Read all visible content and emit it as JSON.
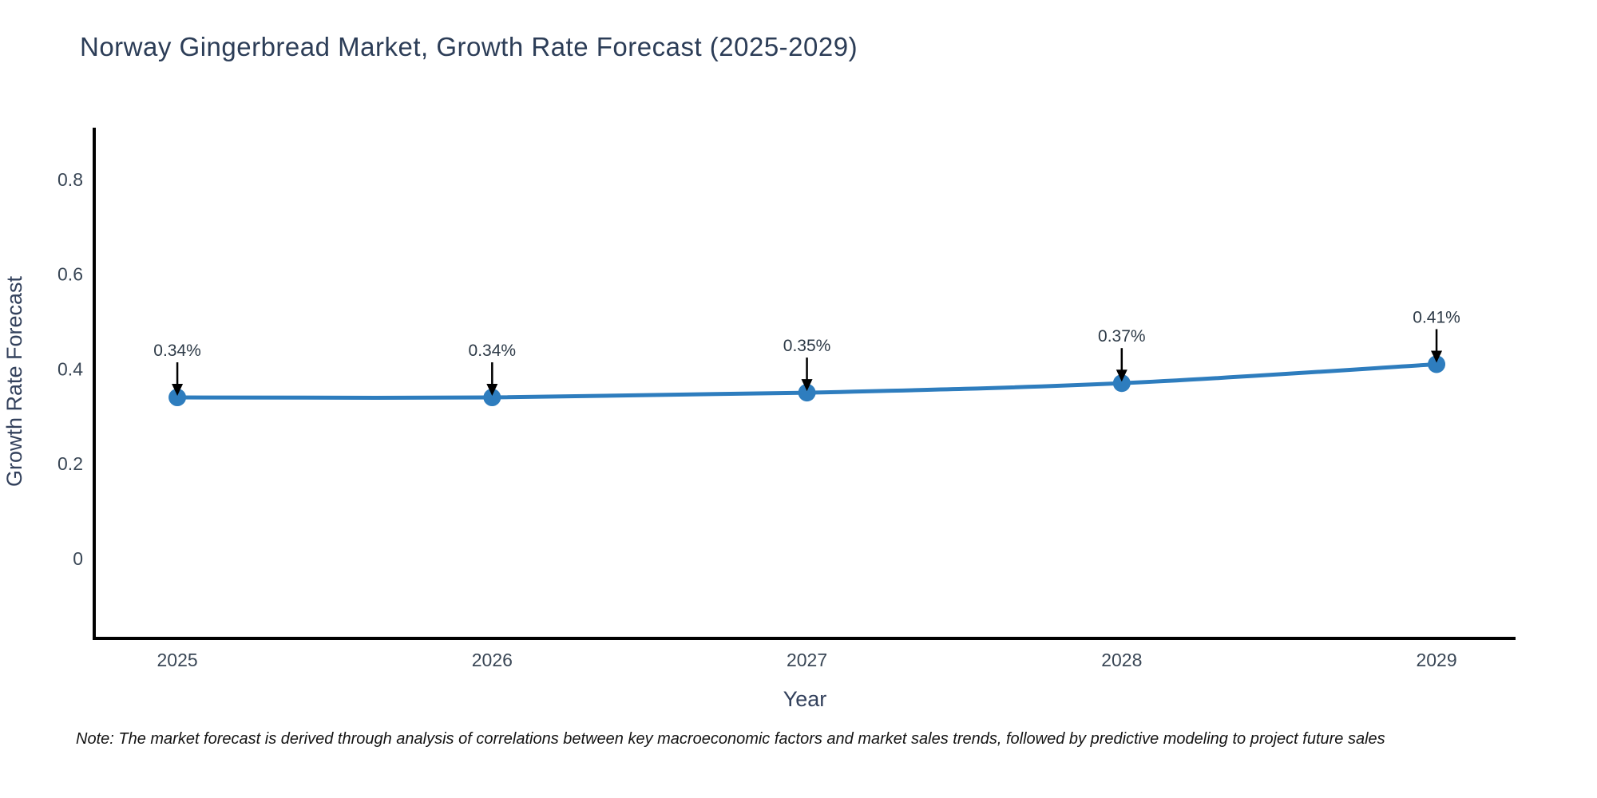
{
  "title": "Norway Gingerbread Market, Growth Rate Forecast (2025-2029)",
  "note": "Note: The market forecast is derived through analysis of correlations between key macroeconomic factors and market sales trends, followed by predictive modeling to project future sales",
  "chart_data": {
    "type": "line",
    "title": "Norway Gingerbread Market, Growth Rate Forecast (2025-2029)",
    "xlabel": "Year",
    "ylabel": "Growth Rate Forecast",
    "x": [
      2025,
      2026,
      2027,
      2028,
      2029
    ],
    "values": [
      0.34,
      0.34,
      0.35,
      0.37,
      0.41
    ],
    "point_labels": [
      "0.34%",
      "0.34%",
      "0.35%",
      "0.37%",
      "0.41%"
    ],
    "yticks": [
      0,
      0.2,
      0.4,
      0.6,
      0.8
    ],
    "ytick_labels": [
      "0",
      "0.2",
      "0.4",
      "0.6",
      "0.8"
    ],
    "xtick_labels": [
      "2025",
      "2026",
      "2027",
      "2028",
      "2029"
    ],
    "xlim": [
      2024.736,
      2029.251
    ],
    "ylim": [
      -0.1684,
      0.9091
    ],
    "grid": false,
    "legend_position": "none",
    "line_shape": "spline",
    "line_color": "#2e7dbe",
    "marker_color": "#2e7dbe",
    "axis_color": "#000000",
    "arrow_color": "#000000"
  }
}
